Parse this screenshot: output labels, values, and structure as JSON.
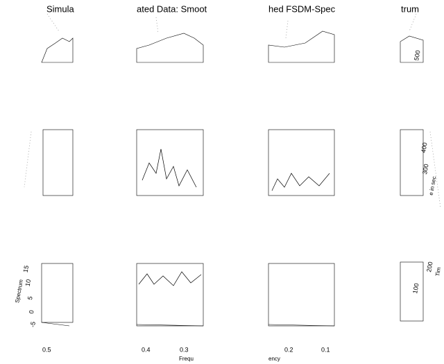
{
  "title_fragments": [
    "Simula",
    "ated Data: Smoot",
    "hed FSDM-Spec",
    "trum"
  ],
  "frequency_ticks": [
    "0.5",
    "0.4",
    "0.3",
    "0.2",
    "0.1"
  ],
  "frequency_label_fragments": [
    "Frequ",
    "ency"
  ],
  "spectrum_ticks": [
    "15",
    "10",
    "5",
    "0",
    "-5"
  ],
  "spectrum_label": "Spectrum",
  "time_ticks": [
    "500",
    "400",
    "300",
    "200",
    "100"
  ],
  "time_label_fragments": [
    "e in sec",
    "Tim"
  ]
}
